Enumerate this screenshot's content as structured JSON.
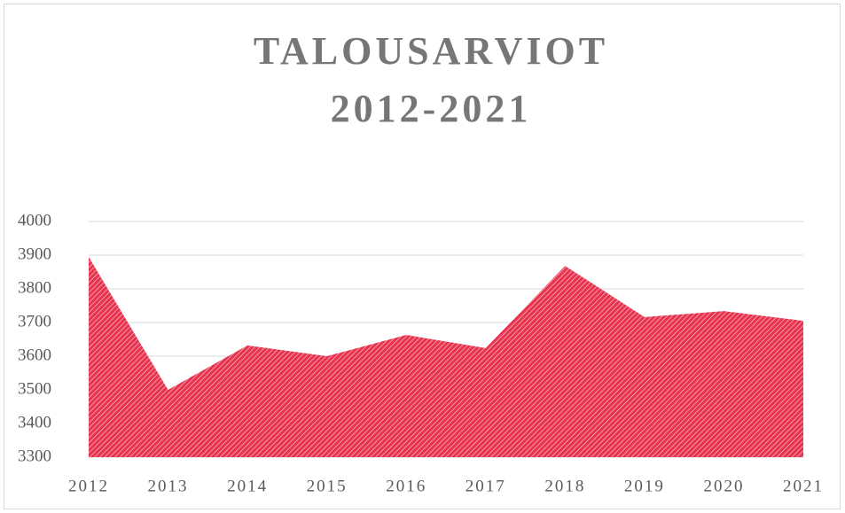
{
  "chart_data": {
    "type": "area",
    "title": [
      "TALOUSARVIOT",
      "2012-2021"
    ],
    "categories": [
      "2012",
      "2013",
      "2014",
      "2015",
      "2016",
      "2017",
      "2018",
      "2019",
      "2020",
      "2021"
    ],
    "values": [
      3895,
      3500,
      3632,
      3600,
      3663,
      3624,
      3868,
      3716,
      3734,
      3705
    ],
    "color": "#e8334f",
    "ylim": [
      3300,
      4000
    ],
    "yticks": [
      3300,
      3400,
      3500,
      3600,
      3700,
      3800,
      3900,
      4000
    ],
    "grid": true
  }
}
